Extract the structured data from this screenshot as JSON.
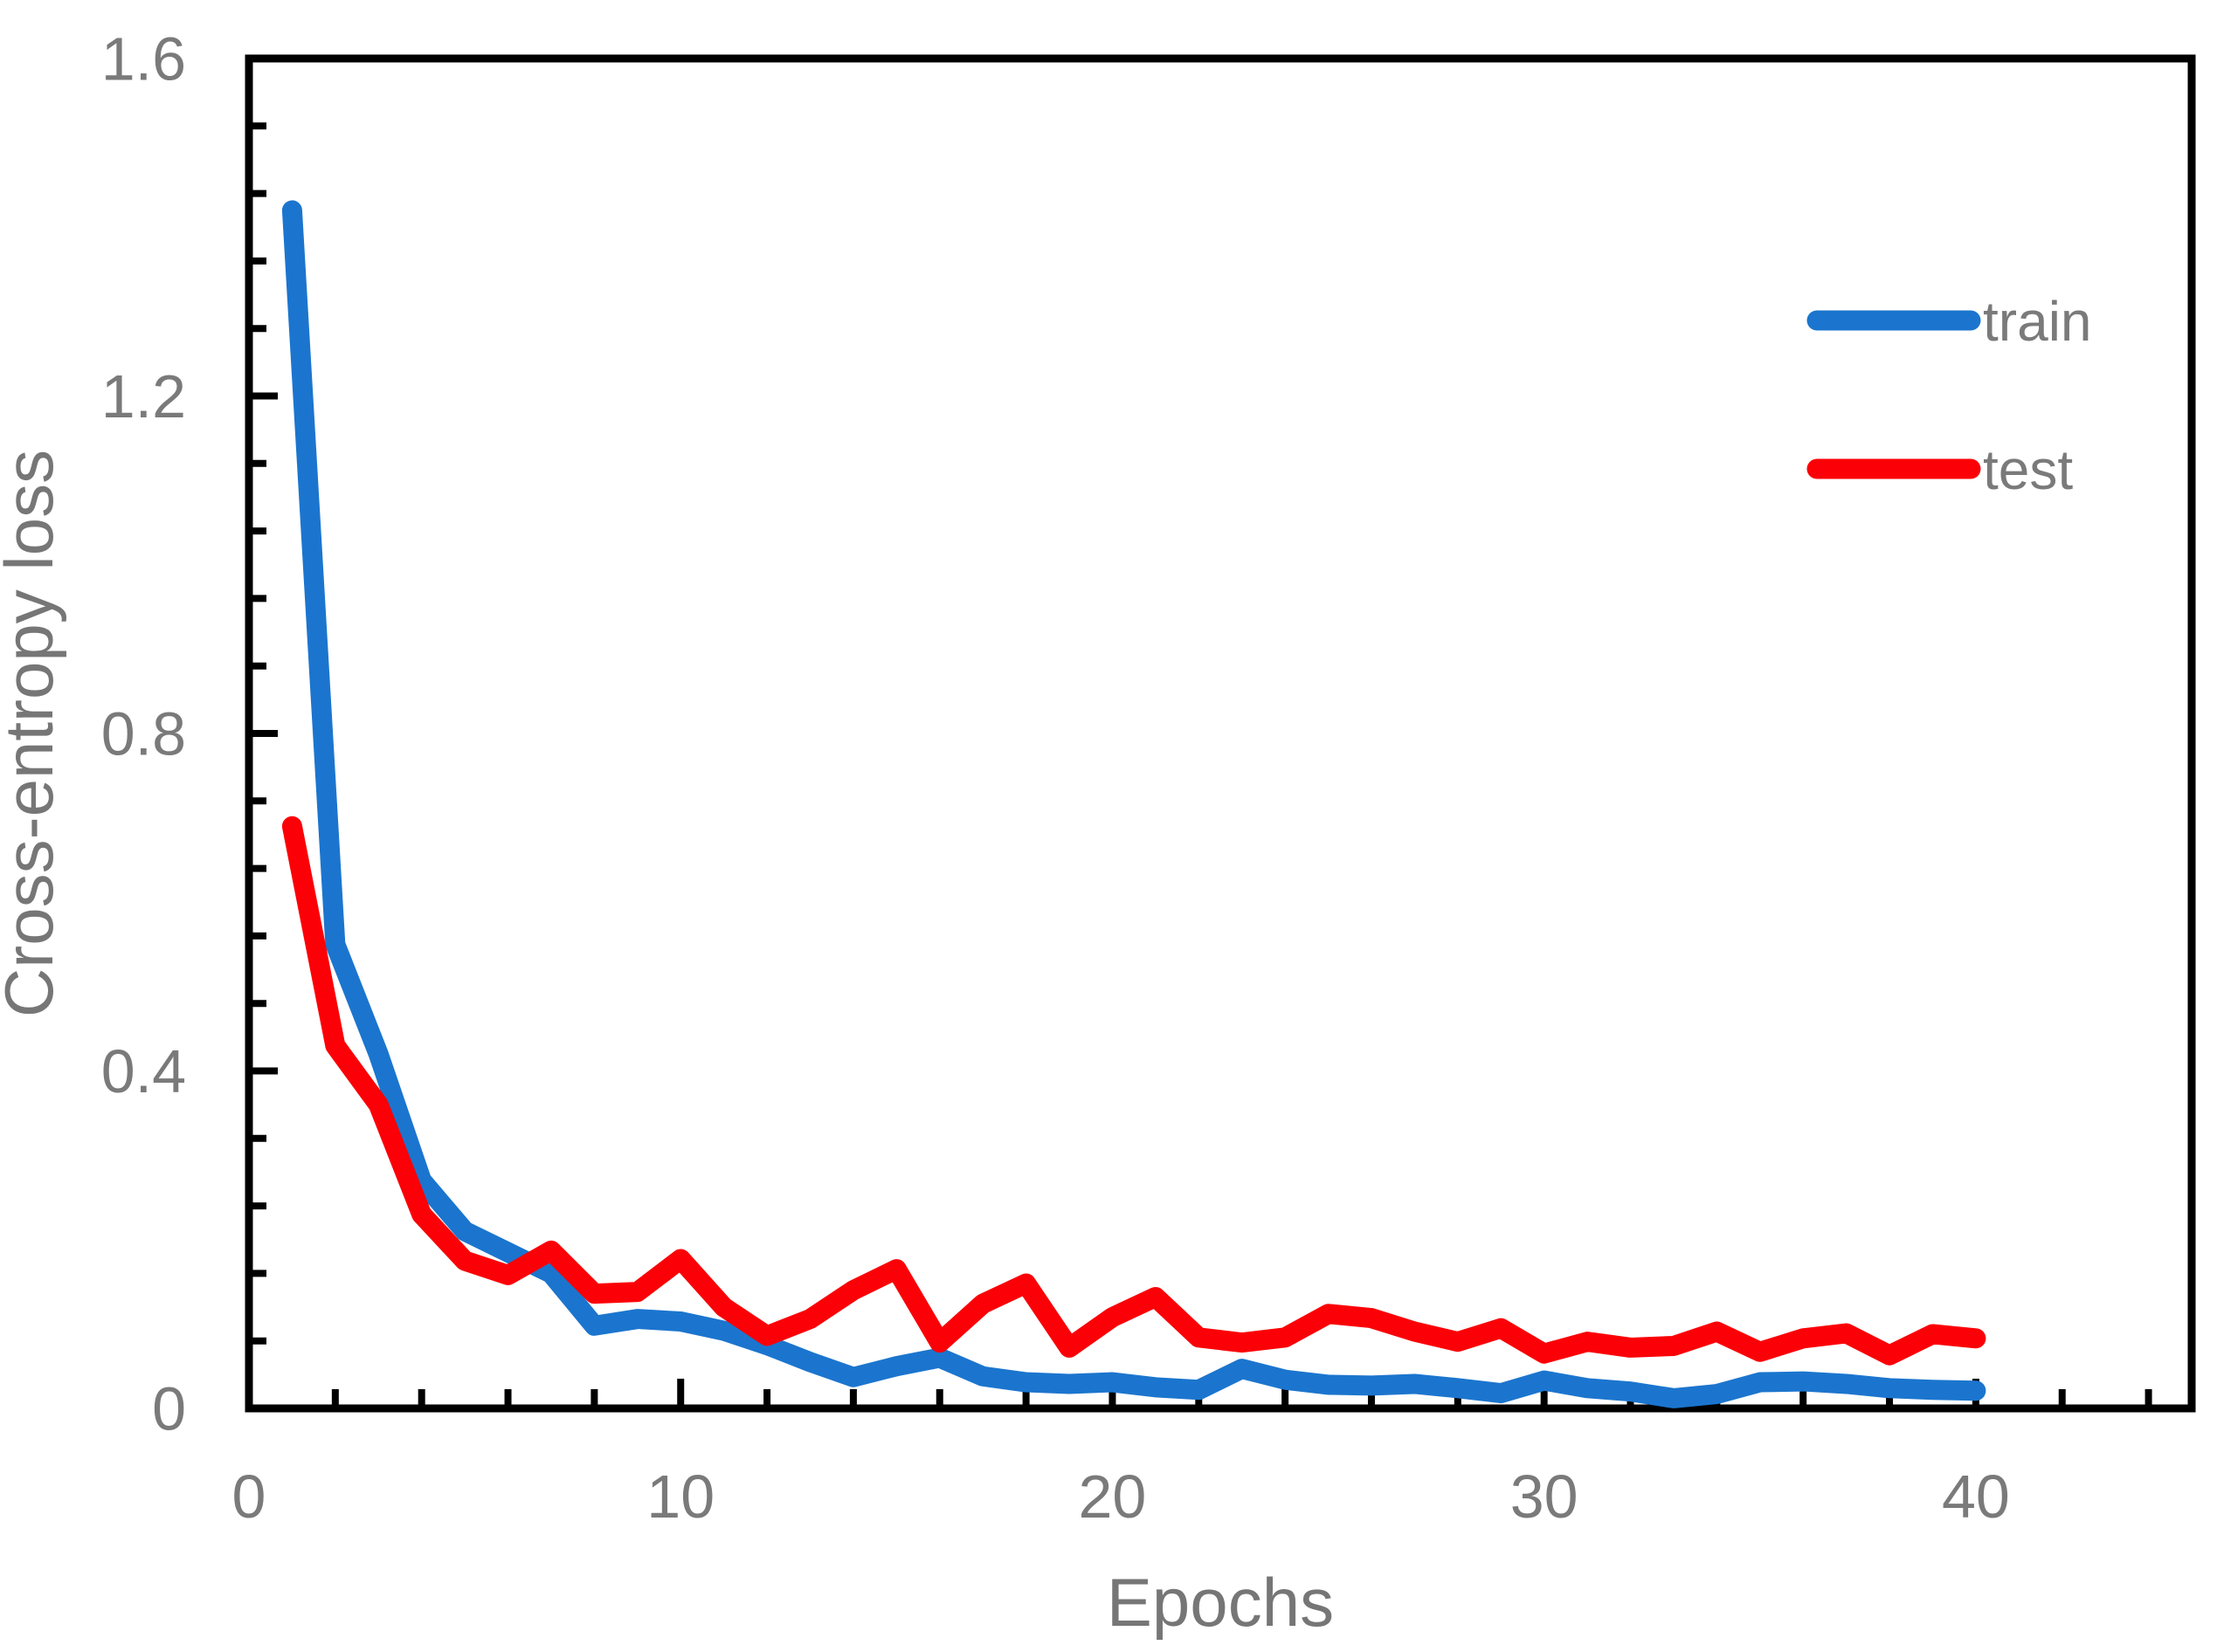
{
  "chart_data": {
    "type": "line",
    "title": "",
    "xlabel": "Epochs",
    "ylabel": "Cross-entropy loss",
    "xlim": [
      0,
      45
    ],
    "ylim": [
      0,
      1.6
    ],
    "x_major_unit": 10,
    "x_minor_unit": 2,
    "y_major_unit": 0.4,
    "y_minor_unit": 0.08,
    "x_tick_labels": [
      "0",
      "10",
      "20",
      "30",
      "40"
    ],
    "x_tick_values": [
      0,
      10,
      20,
      30,
      40
    ],
    "y_tick_labels": [
      "0",
      "0.4",
      "0.8",
      "1.2",
      "1.6"
    ],
    "y_tick_values": [
      0,
      0.4,
      0.8,
      1.2,
      1.6
    ],
    "grid": false,
    "legend_position": "upper-right",
    "x": [
      1,
      2,
      3,
      4,
      5,
      6,
      7,
      8,
      9,
      10,
      11,
      12,
      13,
      14,
      15,
      16,
      17,
      18,
      19,
      20,
      21,
      22,
      23,
      24,
      25,
      26,
      27,
      28,
      29,
      30,
      31,
      32,
      33,
      34,
      35,
      36,
      37,
      38,
      39,
      40
    ],
    "series": [
      {
        "name": "train",
        "color": "#1b75ce",
        "values": [
          1.42,
          0.55,
          0.42,
          0.27,
          0.21,
          0.185,
          0.16,
          0.098,
          0.106,
          0.103,
          0.092,
          0.075,
          0.055,
          0.037,
          0.05,
          0.06,
          0.038,
          0.031,
          0.029,
          0.031,
          0.025,
          0.022,
          0.047,
          0.034,
          0.028,
          0.027,
          0.029,
          0.024,
          0.018,
          0.033,
          0.024,
          0.02,
          0.012,
          0.017,
          0.031,
          0.032,
          0.029,
          0.024,
          0.022,
          0.021
        ]
      },
      {
        "name": "test",
        "color": "#fb0006",
        "values": [
          0.69,
          0.43,
          0.36,
          0.23,
          0.175,
          0.158,
          0.187,
          0.136,
          0.138,
          0.177,
          0.12,
          0.086,
          0.106,
          0.14,
          0.165,
          0.078,
          0.124,
          0.148,
          0.072,
          0.108,
          0.132,
          0.084,
          0.078,
          0.084,
          0.112,
          0.107,
          0.091,
          0.079,
          0.095,
          0.065,
          0.079,
          0.072,
          0.074,
          0.091,
          0.067,
          0.083,
          0.089,
          0.063,
          0.088,
          0.083
        ]
      }
    ]
  },
  "legend": {
    "train_label": "train",
    "test_label": "test"
  },
  "colors": {
    "train_line": "#1b75ce",
    "test_line": "#fb0006",
    "axis": "#000000",
    "tick_label_text": "#7a7a7a",
    "axis_title_text": "#767676",
    "background": "#ffffff"
  }
}
